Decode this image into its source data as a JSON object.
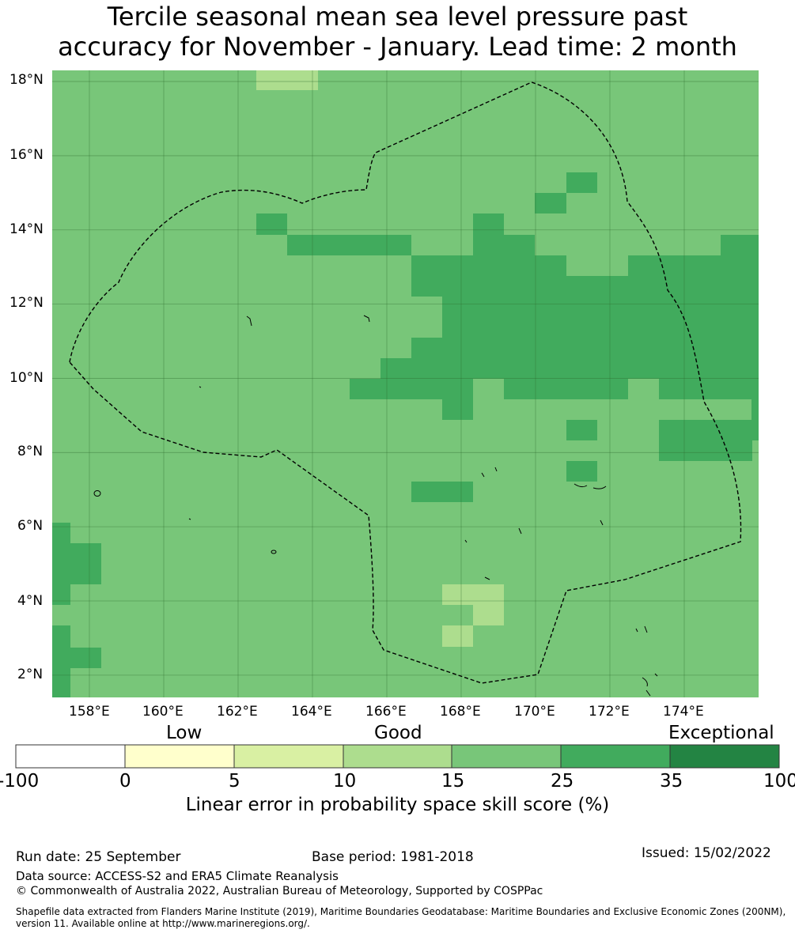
{
  "title_line1": "Tercile seasonal mean sea level pressure past",
  "title_line2": "accuracy for November - January. Lead time: 2 month",
  "map": {
    "lat_labels": [
      "18°N",
      "16°N",
      "14°N",
      "12°N",
      "10°N",
      "8°N",
      "6°N",
      "4°N",
      "2°N"
    ],
    "lon_labels": [
      "158°E",
      "160°E",
      "162°E",
      "164°E",
      "166°E",
      "168°E",
      "170°E",
      "172°E",
      "174°E"
    ],
    "lon_range": [
      157,
      176
    ],
    "lat_range": [
      1.4,
      18.3
    ],
    "eez_boundary": "dashed"
  },
  "colorbar": {
    "categories": [
      "Low",
      "Good",
      "Exceptional"
    ],
    "ticks": [
      "-100",
      "0",
      "5",
      "10",
      "15",
      "25",
      "35",
      "100"
    ],
    "colors": [
      "#ffffff",
      "#ffffcc",
      "#d9f0a3",
      "#addd8e",
      "#78c679",
      "#41ab5d",
      "#238443"
    ],
    "title": "Linear error in probability space skill score (%)"
  },
  "footer": {
    "run_date": "Run date: 25 September",
    "base_period": "Base period: 1981-2018",
    "issued": "Issued: 15/02/2022",
    "data_source": "Data source: ACCESS-S2 and ERA5 Climate Reanalysis",
    "copyright": "© Commonwealth of Australia 2022, Australian Bureau of Meteorology, Supported by COSPPac",
    "shapefile": "Shapefile data extracted from Flanders Marine Institute (2019), Maritime Boundaries Geodatabase: Maritime Boundaries and Exclusive Economic Zones (200NM), version 11. Available online at http://www.marineregions.org/."
  }
}
